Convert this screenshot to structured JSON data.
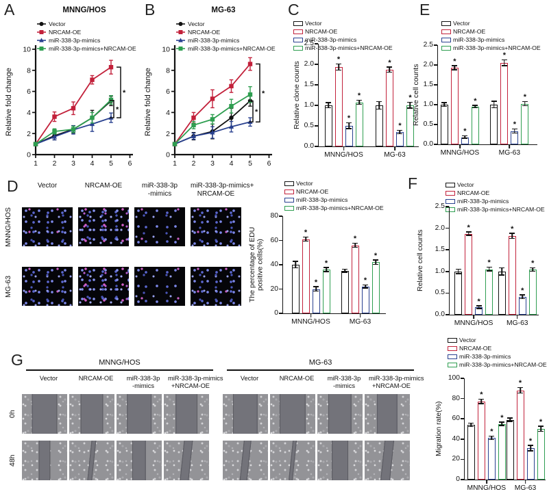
{
  "letters": {
    "A": "A",
    "B": "B",
    "C": "C",
    "D": "D",
    "E": "E",
    "F": "F",
    "G": "G"
  },
  "sig_symbol": "*",
  "conditions": [
    {
      "label": "Vector",
      "color": "#111111",
      "marker": "circle"
    },
    {
      "label": "NRCAM-OE",
      "color": "#c2203a",
      "marker": "square"
    },
    {
      "label": "miR-338-3p-mimics",
      "color": "#28408f",
      "marker": "triangle"
    },
    {
      "label": "miR-338-3p-mimics+NRCAM-OE",
      "color": "#2e9e50",
      "marker": "square"
    }
  ],
  "panelD": {
    "cols": [
      [
        "Vector",
        ""
      ],
      [
        "NRCAM-OE",
        ""
      ],
      [
        "miR-338-3p",
        "-mimics"
      ],
      [
        "miR-338-3p-mimics+",
        "NRCAM-OE"
      ]
    ],
    "rows": [
      {
        "label": "MNNG/HOS",
        "density": [
          "med",
          "high",
          "low",
          "med"
        ]
      },
      {
        "label": "MG-63",
        "density": [
          "med",
          "high",
          "low",
          "med"
        ]
      }
    ]
  },
  "panelG": {
    "groups": [
      "MNNG/HOS",
      "MG-63"
    ],
    "cols": [
      [
        "Vector",
        ""
      ],
      [
        "NRCAM-OE",
        ""
      ],
      [
        "miR-338-3p",
        "-mimics"
      ],
      [
        "miR-338-3p-mimics",
        "+NRCAM-OE"
      ]
    ],
    "rows": [
      {
        "label": "0h",
        "gaps": [
          [
            56,
            50,
            54,
            48
          ],
          [
            55,
            58,
            52,
            46
          ]
        ],
        "slants": [
          [
            0,
            0,
            0,
            0
          ],
          [
            0,
            0,
            0,
            0
          ]
        ]
      },
      {
        "label": "48h",
        "gaps": [
          [
            26,
            11,
            31,
            20
          ],
          [
            16,
            9,
            36,
            21
          ]
        ],
        "slants": [
          [
            0,
            1,
            0,
            1
          ],
          [
            1,
            1,
            0,
            1
          ]
        ]
      }
    ]
  },
  "chart_data": {
    "A": {
      "type": "line",
      "title": "MNNG/HOS",
      "ylabel": "Relative fold change",
      "ymax": 10,
      "yticks": [
        "0",
        "2",
        "4",
        "6",
        "8",
        "10"
      ],
      "x": [
        1,
        2,
        3,
        4,
        5
      ],
      "xticks": [
        "1",
        "2",
        "3",
        "4",
        "5",
        "6"
      ],
      "values": [
        [
          1,
          1.8,
          2.4,
          3.5,
          5.1
        ],
        [
          1,
          3.6,
          4.4,
          7.1,
          8.3
        ],
        [
          1,
          1.7,
          2.35,
          2.9,
          3.5
        ],
        [
          1,
          2.2,
          2.4,
          3.5,
          5.2
        ]
      ],
      "errors": [
        [
          0.15,
          0.4,
          0.35,
          0.7,
          0.45
        ],
        [
          0.15,
          0.45,
          0.6,
          0.4,
          0.65
        ],
        [
          0.15,
          0.3,
          0.4,
          0.7,
          0.45
        ],
        [
          0.15,
          0.25,
          0.3,
          0.5,
          0.4
        ]
      ],
      "brackets": [
        {
          "from": 8.3,
          "to": 3.5,
          "star": "*"
        },
        {
          "from": 5.15,
          "to": 3.5,
          "star": "*"
        }
      ]
    },
    "B": {
      "type": "line",
      "title": "MG-63",
      "ylabel": "Relative fold change",
      "ymax": 10,
      "yticks": [
        "0",
        "2",
        "4",
        "6",
        "8",
        "10"
      ],
      "x": [
        1,
        2,
        3,
        4,
        5
      ],
      "xticks": [
        "1",
        "2",
        "3",
        "4",
        "5",
        "6"
      ],
      "values": [
        [
          1,
          1.75,
          2.2,
          3.5,
          5.1
        ],
        [
          1,
          3.5,
          5.3,
          6.5,
          8.6
        ],
        [
          1,
          1.75,
          2.1,
          2.65,
          3.1
        ],
        [
          1,
          2.8,
          3.35,
          4.6,
          5.7
        ]
      ],
      "errors": [
        [
          0.1,
          0.35,
          0.7,
          0.9,
          0.5
        ],
        [
          0.1,
          0.5,
          0.85,
          0.6,
          0.6
        ],
        [
          0.1,
          0.3,
          0.55,
          0.5,
          0.4
        ],
        [
          0.1,
          0.35,
          0.45,
          0.65,
          0.75
        ]
      ],
      "brackets": [
        {
          "from": 8.6,
          "to": 3.1,
          "star": "*"
        },
        {
          "from": 5.1,
          "to": 3.1,
          "star": "*"
        }
      ]
    },
    "C": {
      "type": "bar",
      "ylabel": "Relative clone counts",
      "ymax": 2.5,
      "yticks": [
        "0.0",
        "0.5",
        "1.0",
        "1.5",
        "2.0",
        "2.5"
      ],
      "groups": [
        "MNNG/HOS",
        "MG-63"
      ],
      "values": [
        [
          1.0,
          1.0
        ],
        [
          1.93,
          1.87
        ],
        [
          0.5,
          0.35
        ],
        [
          1.07,
          1.0
        ]
      ],
      "errors": [
        [
          0.07,
          0.1
        ],
        [
          0.08,
          0.07
        ],
        [
          0.08,
          0.05
        ],
        [
          0.06,
          0.08
        ]
      ],
      "sig": [
        [
          false,
          false
        ],
        [
          true,
          true
        ],
        [
          true,
          true
        ],
        [
          true,
          true
        ]
      ]
    },
    "D": {
      "type": "bar",
      "ylabel": [
        "The percentage of EDU",
        "positive cells(%)"
      ],
      "ymax": 80,
      "yticks": [
        "0",
        "20",
        "40",
        "60",
        "80"
      ],
      "groups": [
        "MNNG/HOS",
        "MG-63"
      ],
      "values": [
        [
          40,
          35
        ],
        [
          61,
          56
        ],
        [
          20,
          22
        ],
        [
          36,
          42
        ]
      ],
      "errors": [
        [
          3,
          1.5
        ],
        [
          2,
          2
        ],
        [
          2,
          1.5
        ],
        [
          2,
          2
        ]
      ],
      "sig": [
        [
          false,
          false
        ],
        [
          true,
          true
        ],
        [
          true,
          true
        ],
        [
          true,
          true
        ]
      ]
    },
    "E": {
      "type": "bar",
      "ylabel": "Relative cell counts",
      "ymax": 2.5,
      "yticks": [
        "0.0",
        "0.5",
        "1.0",
        "1.5",
        "2.0",
        "2.5"
      ],
      "groups": [
        "MNNG/HOS",
        "MG-63"
      ],
      "values": [
        [
          1.0,
          1.0
        ],
        [
          1.93,
          2.05
        ],
        [
          0.18,
          0.33
        ],
        [
          0.95,
          1.02
        ]
      ],
      "errors": [
        [
          0.06,
          0.09
        ],
        [
          0.06,
          0.08
        ],
        [
          0.04,
          0.06
        ],
        [
          0.04,
          0.06
        ]
      ],
      "sig": [
        [
          false,
          false
        ],
        [
          true,
          true
        ],
        [
          true,
          true
        ],
        [
          true,
          true
        ]
      ]
    },
    "F": {
      "type": "bar",
      "ylabel": "Relative cell counts",
      "ymax": 2.5,
      "yticks": [
        "0.0",
        "0.5",
        "1.0",
        "1.5",
        "2.0",
        "2.5"
      ],
      "groups": [
        "MNNG/HOS",
        "MG-63"
      ],
      "values": [
        [
          1.0,
          1.0
        ],
        [
          1.87,
          1.82
        ],
        [
          0.17,
          0.41
        ],
        [
          1.05,
          1.04
        ]
      ],
      "errors": [
        [
          0.06,
          0.09
        ],
        [
          0.05,
          0.07
        ],
        [
          0.04,
          0.05
        ],
        [
          0.05,
          0.05
        ]
      ],
      "sig": [
        [
          false,
          false
        ],
        [
          true,
          true
        ],
        [
          true,
          true
        ],
        [
          true,
          true
        ]
      ]
    },
    "G": {
      "type": "bar",
      "ylabel": "Migration rate(%)",
      "ymax": 100,
      "yticks": [
        "0",
        "20",
        "40",
        "60",
        "80",
        "100"
      ],
      "groups": [
        "MNNG/HOS",
        "MG-63"
      ],
      "values": [
        [
          54,
          59
        ],
        [
          77,
          88
        ],
        [
          41,
          31
        ],
        [
          55,
          50
        ]
      ],
      "errors": [
        [
          2,
          2
        ],
        [
          2.5,
          3
        ],
        [
          2,
          3
        ],
        [
          2,
          3
        ]
      ],
      "sig": [
        [
          false,
          false
        ],
        [
          true,
          true
        ],
        [
          true,
          true
        ],
        [
          true,
          true
        ]
      ]
    }
  }
}
